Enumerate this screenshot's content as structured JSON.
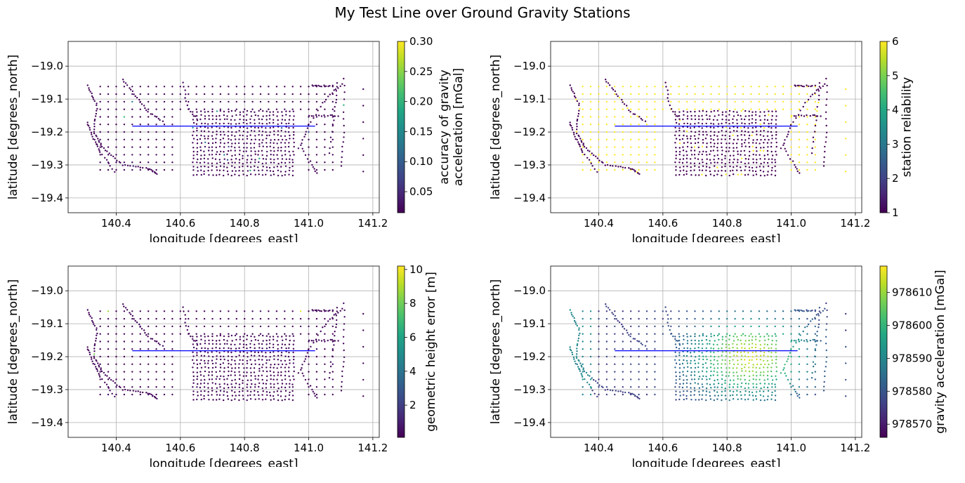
{
  "figure": {
    "title": "My Test Line over Ground Gravity Stations"
  },
  "chart_data": [
    {
      "type": "scatter",
      "xlabel": "longitude [degrees_east]",
      "ylabel": "latitude [degrees_north]",
      "xlim": [
        140.25,
        141.22
      ],
      "ylim": [
        -19.445,
        -18.925
      ],
      "xticks": [
        "140.4",
        "140.6",
        "140.8",
        "141.0",
        "141.2"
      ],
      "yticks": [
        "−19.0",
        "−19.1",
        "−19.2",
        "−19.3",
        "−19.4"
      ],
      "grid": true,
      "line": {
        "x": [
          140.45,
          141.02
        ],
        "y": [
          -19.182,
          -19.182
        ],
        "color": "#0000ff"
      },
      "colorbar": {
        "label": "accuracy of gravity acceleration [mGal]",
        "range": [
          0.015,
          0.3
        ],
        "ticks": [
          "0.05",
          "0.10",
          "0.15",
          "0.20",
          "0.25",
          "0.30"
        ],
        "colormap": "viridis"
      },
      "color_variable": "accuracy"
    },
    {
      "type": "scatter",
      "xlabel": "longitude [degrees_east]",
      "ylabel": "latitude [degrees_north]",
      "xlim": [
        140.25,
        141.22
      ],
      "ylim": [
        -19.445,
        -18.925
      ],
      "xticks": [
        "140.4",
        "140.6",
        "140.8",
        "141.0",
        "141.2"
      ],
      "yticks": [
        "−19.0",
        "−19.1",
        "−19.2",
        "−19.3",
        "−19.4"
      ],
      "grid": true,
      "line": {
        "x": [
          140.45,
          141.02
        ],
        "y": [
          -19.182,
          -19.182
        ],
        "color": "#0000ff"
      },
      "colorbar": {
        "label": "station reliability",
        "range": [
          1,
          6
        ],
        "ticks": [
          "1",
          "2",
          "3",
          "4",
          "5",
          "6"
        ],
        "colormap": "viridis"
      },
      "color_variable": "reliability"
    },
    {
      "type": "scatter",
      "xlabel": "longitude [degrees_east]",
      "ylabel": "latitude [degrees_north]",
      "xlim": [
        140.25,
        141.22
      ],
      "ylim": [
        -19.445,
        -18.925
      ],
      "xticks": [
        "140.4",
        "140.6",
        "140.8",
        "141.0",
        "141.2"
      ],
      "yticks": [
        "−19.0",
        "−19.1",
        "−19.2",
        "−19.3",
        "−19.4"
      ],
      "grid": true,
      "line": {
        "x": [
          140.45,
          141.02
        ],
        "y": [
          -19.182,
          -19.182
        ],
        "color": "#0000ff"
      },
      "colorbar": {
        "label": "geometric height error [m]",
        "range": [
          0.1,
          10.2
        ],
        "ticks": [
          "2",
          "4",
          "6",
          "8",
          "10"
        ],
        "colormap": "viridis"
      },
      "color_variable": "height_error"
    },
    {
      "type": "scatter",
      "xlabel": "longitude [degrees_east]",
      "ylabel": "latitude [degrees_north]",
      "xlim": [
        140.25,
        141.22
      ],
      "ylim": [
        -19.445,
        -18.925
      ],
      "xticks": [
        "140.4",
        "140.6",
        "140.8",
        "141.0",
        "141.2"
      ],
      "yticks": [
        "−19.0",
        "−19.1",
        "−19.2",
        "−19.3",
        "−19.4"
      ],
      "grid": true,
      "line": {
        "x": [
          140.45,
          141.02
        ],
        "y": [
          -19.182,
          -19.182
        ],
        "color": "#0000ff"
      },
      "colorbar": {
        "label": "gravity acceleration [mGal]",
        "range": [
          978566,
          978618
        ],
        "ticks": [
          "978570",
          "978580",
          "978590",
          "978600",
          "978610"
        ],
        "colormap": "viridis"
      },
      "color_variable": "gravity"
    }
  ]
}
